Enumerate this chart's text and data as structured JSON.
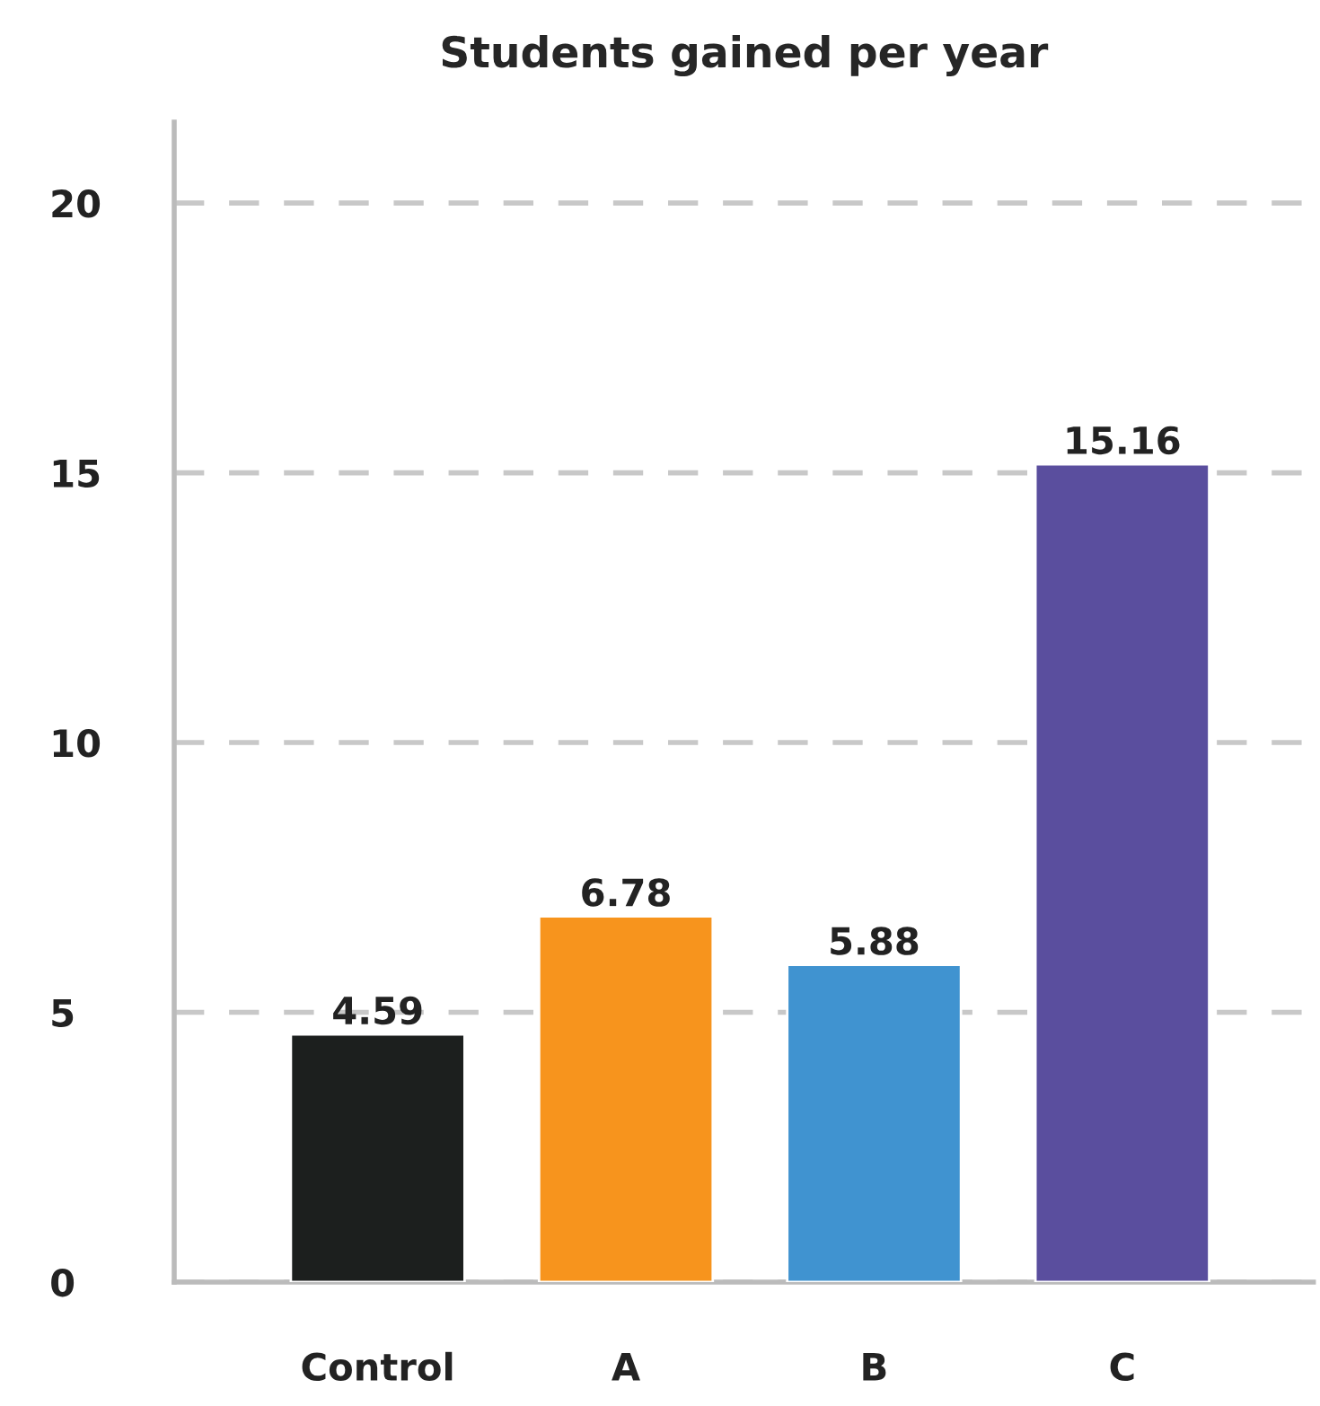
{
  "chart_data": {
    "type": "bar",
    "title": "Students gained per year",
    "categories": [
      "Control",
      "A",
      "B",
      "C"
    ],
    "values": [
      4.59,
      6.78,
      5.88,
      15.16
    ],
    "colors": [
      "#1c1f1e",
      "#f7941d",
      "#4093d0",
      "#5a4e9e"
    ],
    "ylim": [
      0,
      21.5
    ],
    "yticks": [
      0,
      5,
      10,
      15,
      20
    ],
    "grid": "y",
    "data_labels": true,
    "legend": false
  }
}
